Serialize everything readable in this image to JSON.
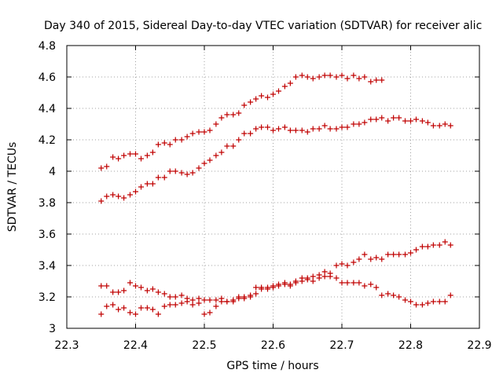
{
  "chart_data": {
    "type": "scatter",
    "title": "Day 340 of 2015, Sidereal Day-to-day VTEC variation (SDTVAR) for receiver alic",
    "xlabel": "GPS time / hours",
    "ylabel": "SDTVAR / TECUs",
    "xlim": [
      22.3,
      22.9
    ],
    "ylim": [
      3.0,
      4.8
    ],
    "x_ticks": [
      "22.3",
      "22.4",
      "22.5",
      "22.6",
      "22.7",
      "22.8",
      "22.9"
    ],
    "y_ticks": [
      "3",
      "3.2",
      "3.4",
      "3.6",
      "3.8",
      "4",
      "4.2",
      "4.4",
      "4.6",
      "4.8"
    ],
    "grid": true,
    "marker": "+",
    "color": "#c00000",
    "series": [
      {
        "name": "series-1",
        "x": [
          22.35,
          22.358,
          22.367,
          22.375,
          22.383,
          22.392,
          22.4,
          22.408,
          22.417,
          22.425,
          22.433,
          22.442,
          22.45,
          22.458,
          22.467,
          22.475,
          22.483,
          22.492,
          22.5,
          22.508,
          22.517,
          22.525,
          22.533,
          22.542,
          22.55,
          22.558,
          22.567,
          22.575,
          22.583,
          22.592,
          22.6,
          22.608,
          22.617,
          22.625,
          22.633,
          22.642,
          22.65,
          22.658,
          22.667,
          22.675,
          22.683,
          22.692,
          22.7,
          22.708,
          22.717,
          22.725,
          22.733,
          22.742,
          22.75,
          22.758
        ],
        "y": [
          4.02,
          4.03,
          4.09,
          4.08,
          4.1,
          4.11,
          4.11,
          4.08,
          4.1,
          4.12,
          4.17,
          4.18,
          4.17,
          4.2,
          4.2,
          4.22,
          4.24,
          4.25,
          4.25,
          4.26,
          4.3,
          4.34,
          4.36,
          4.36,
          4.37,
          4.42,
          4.44,
          4.46,
          4.48,
          4.47,
          4.49,
          4.51,
          4.54,
          4.56,
          4.6,
          4.61,
          4.6,
          4.59,
          4.6,
          4.61,
          4.61,
          4.6,
          4.61,
          4.59,
          4.61,
          4.59,
          4.6,
          4.57,
          4.58,
          4.58
        ]
      },
      {
        "name": "series-2",
        "x": [
          22.35,
          22.358,
          22.367,
          22.375,
          22.383,
          22.392,
          22.4,
          22.408,
          22.417,
          22.425,
          22.433,
          22.442,
          22.45,
          22.458,
          22.467,
          22.475,
          22.483,
          22.492,
          22.5,
          22.508,
          22.517,
          22.525,
          22.533,
          22.542,
          22.55,
          22.558,
          22.567,
          22.575,
          22.583,
          22.592,
          22.6,
          22.608,
          22.617,
          22.625,
          22.633,
          22.642,
          22.65,
          22.658,
          22.667,
          22.675,
          22.683,
          22.692,
          22.7,
          22.708,
          22.717,
          22.725,
          22.733,
          22.742,
          22.75,
          22.758,
          22.767,
          22.775,
          22.783,
          22.792,
          22.8,
          22.808,
          22.817,
          22.825,
          22.833,
          22.842,
          22.85,
          22.858
        ],
        "y": [
          3.81,
          3.84,
          3.85,
          3.84,
          3.83,
          3.85,
          3.87,
          3.9,
          3.92,
          3.92,
          3.96,
          3.96,
          4.0,
          4.0,
          3.99,
          3.98,
          3.99,
          4.02,
          4.05,
          4.07,
          4.1,
          4.12,
          4.16,
          4.16,
          4.2,
          4.24,
          4.24,
          4.27,
          4.28,
          4.28,
          4.26,
          4.27,
          4.28,
          4.26,
          4.26,
          4.26,
          4.25,
          4.27,
          4.27,
          4.29,
          4.27,
          4.27,
          4.28,
          4.28,
          4.3,
          4.3,
          4.31,
          4.33,
          4.33,
          4.34,
          4.32,
          4.34,
          4.34,
          4.32,
          4.32,
          4.33,
          4.32,
          4.31,
          4.29,
          4.29,
          4.3,
          4.29
        ]
      },
      {
        "name": "series-3",
        "x": [
          22.35,
          22.358,
          22.367,
          22.375,
          22.383,
          22.392,
          22.4,
          22.408,
          22.417,
          22.425,
          22.433,
          22.442,
          22.45,
          22.458,
          22.467,
          22.475,
          22.483,
          22.492,
          22.5,
          22.508,
          22.517,
          22.525,
          22.533,
          22.542,
          22.55,
          22.558,
          22.567,
          22.575,
          22.583,
          22.592,
          22.6,
          22.608,
          22.617,
          22.625,
          22.633,
          22.642,
          22.65,
          22.658,
          22.667,
          22.675,
          22.683,
          22.692,
          22.7,
          22.708,
          22.717,
          22.725,
          22.733,
          22.742,
          22.75,
          22.758,
          22.767,
          22.775,
          22.783,
          22.792,
          22.8,
          22.808,
          22.817,
          22.825,
          22.833,
          22.842,
          22.85,
          22.858
        ],
        "y": [
          3.27,
          3.27,
          3.23,
          3.23,
          3.24,
          3.29,
          3.27,
          3.26,
          3.24,
          3.25,
          3.23,
          3.22,
          3.2,
          3.2,
          3.21,
          3.19,
          3.18,
          3.19,
          3.18,
          3.18,
          3.18,
          3.19,
          3.17,
          3.18,
          3.2,
          3.2,
          3.21,
          3.26,
          3.26,
          3.26,
          3.27,
          3.28,
          3.28,
          3.28,
          3.3,
          3.32,
          3.32,
          3.33,
          3.34,
          3.36,
          3.35,
          3.4,
          3.41,
          3.4,
          3.42,
          3.44,
          3.47,
          3.44,
          3.45,
          3.44,
          3.47,
          3.47,
          3.47,
          3.47,
          3.48,
          3.5,
          3.52,
          3.52,
          3.53,
          3.53,
          3.55,
          3.53
        ]
      },
      {
        "name": "series-4",
        "x": [
          22.35,
          22.358,
          22.367,
          22.375,
          22.383,
          22.392,
          22.4,
          22.408,
          22.417,
          22.425,
          22.433,
          22.442,
          22.45,
          22.458,
          22.467,
          22.475,
          22.483,
          22.492,
          22.5,
          22.508,
          22.517,
          22.525,
          22.533,
          22.542,
          22.55,
          22.558,
          22.567,
          22.575,
          22.583,
          22.592,
          22.6,
          22.608,
          22.617,
          22.625,
          22.633,
          22.642,
          22.65,
          22.658,
          22.667,
          22.675,
          22.683,
          22.692,
          22.7,
          22.708,
          22.717,
          22.725,
          22.733,
          22.742,
          22.75,
          22.758,
          22.767,
          22.775,
          22.783,
          22.792,
          22.8,
          22.808,
          22.817,
          22.825,
          22.833,
          22.842,
          22.85,
          22.858
        ],
        "y": [
          3.09,
          3.14,
          3.15,
          3.12,
          3.13,
          3.1,
          3.09,
          3.13,
          3.13,
          3.12,
          3.09,
          3.14,
          3.15,
          3.15,
          3.16,
          3.17,
          3.15,
          3.16,
          3.09,
          3.1,
          3.14,
          3.17,
          3.17,
          3.17,
          3.19,
          3.19,
          3.2,
          3.22,
          3.25,
          3.25,
          3.26,
          3.27,
          3.29,
          3.27,
          3.29,
          3.3,
          3.31,
          3.3,
          3.32,
          3.33,
          3.33,
          3.32,
          3.29,
          3.29,
          3.29,
          3.29,
          3.27,
          3.28,
          3.26,
          3.21,
          3.22,
          3.21,
          3.2,
          3.18,
          3.17,
          3.15,
          3.15,
          3.16,
          3.17,
          3.17,
          3.17,
          3.21
        ]
      }
    ]
  }
}
